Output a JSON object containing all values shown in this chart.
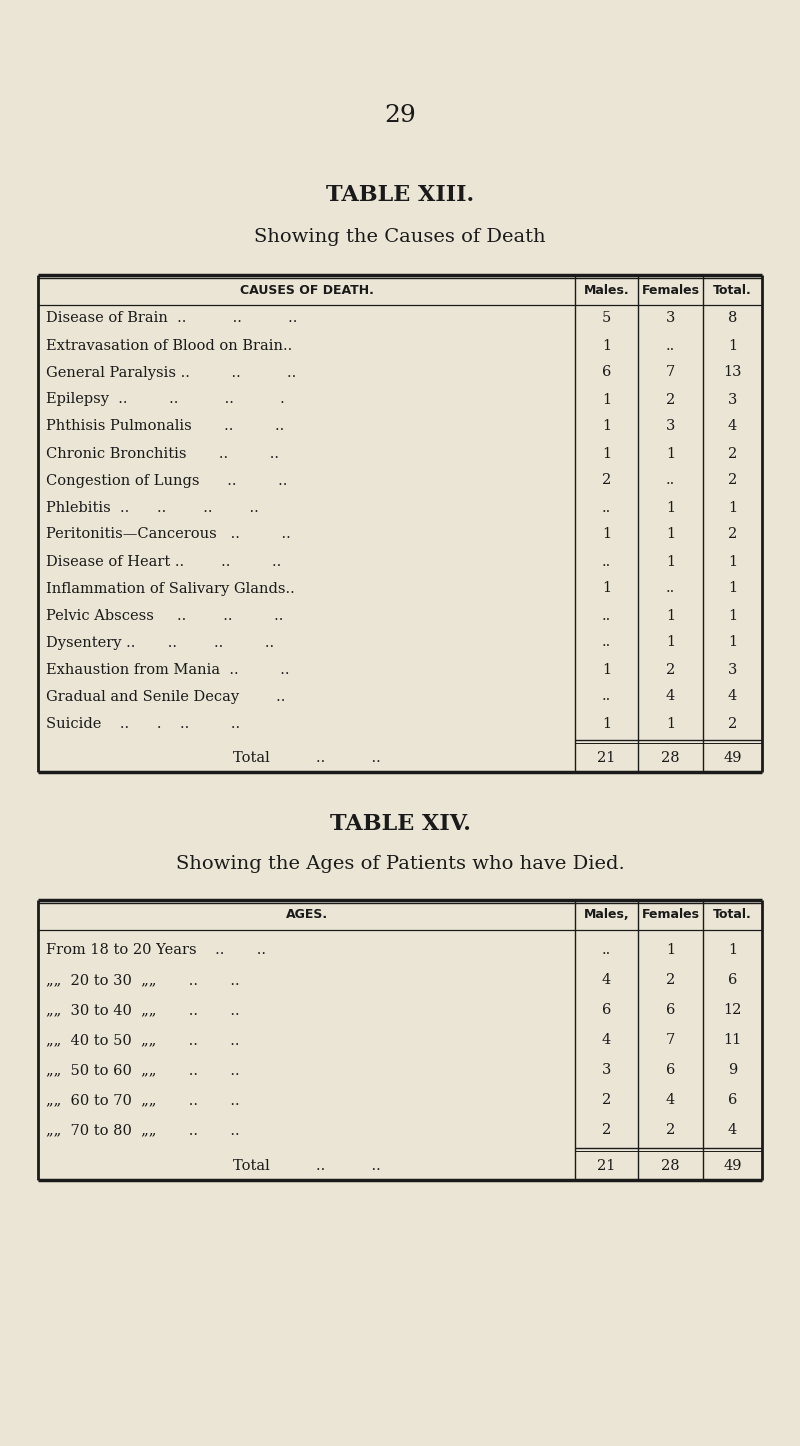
{
  "page_number": "29",
  "bg_color": "#EAE5D5",
  "text_color": "#1a1a1a",
  "table13": {
    "title": "TABLE XIII.",
    "subtitle": "Showing the Causes of Death",
    "col_headers": [
      "CAUSES OF DEATH.",
      "Males.",
      "Females",
      "Total."
    ],
    "rows": [
      [
        "Disease of Brain  ..          ..          ..",
        "5",
        "3",
        "8"
      ],
      [
        "Extravasation of Blood on Brain..",
        "1",
        "..",
        "1"
      ],
      [
        "General Paralysis ..         ..          ..",
        "6",
        "7",
        "13"
      ],
      [
        "Epilepsy  ..         ..          ..          .",
        "1",
        "2",
        "3"
      ],
      [
        "Phthisis Pulmonalis       ..         ..",
        "1",
        "3",
        "4"
      ],
      [
        "Chronic Bronchitis       ..         ..",
        "1",
        "1",
        "2"
      ],
      [
        "Congestion of Lungs      ..         ..",
        "2",
        "..",
        "2"
      ],
      [
        "Phlebitis  ..      ..        ..        ..",
        "..",
        "1",
        "1"
      ],
      [
        "Peritonitis—Cancerous   ..         ..",
        "1",
        "1",
        "2"
      ],
      [
        "Disease of Heart ..        ..         ..",
        "..",
        "1",
        "1"
      ],
      [
        "Inflammation of Salivary Glands..",
        "1",
        "..",
        "1"
      ],
      [
        "Pelvic Abscess     ..        ..         ..",
        "..",
        "1",
        "1"
      ],
      [
        "Dysentery ..       ..        ..         ..",
        "..",
        "1",
        "1"
      ],
      [
        "Exhaustion from Mania  ..         ..",
        "1",
        "2",
        "3"
      ],
      [
        "Gradual and Senile Decay        ..",
        "..",
        "4",
        "4"
      ],
      [
        "Suicide    ..      .    ..         ..",
        "1",
        "1",
        "2"
      ]
    ],
    "total_row": [
      "Total          ..          ..",
      "21",
      "28",
      "49"
    ]
  },
  "table14": {
    "title": "TABLE XIV.",
    "subtitle": "Showing the Ages of Patients who have Died.",
    "col_headers": [
      "AGES.",
      "Males,",
      "Females",
      "Total."
    ],
    "rows": [
      [
        "From 18 to 20 Years    ..       ..",
        "..",
        "1",
        "1"
      ],
      [
        "„„  20 to 30  „„       ..       ..",
        "4",
        "2",
        "6"
      ],
      [
        "„„  30 to 40  „„       ..       ..",
        "6",
        "6",
        "12"
      ],
      [
        "„„  40 to 50  „„       ..       ..",
        "4",
        "7",
        "11"
      ],
      [
        "„„  50 to 60  „„       ..       ..",
        "3",
        "6",
        "9"
      ],
      [
        "„„  60 to 70  „„       ..       ..",
        "2",
        "4",
        "6"
      ],
      [
        "„„  70 to 80  „„       ..       ..",
        "2",
        "2",
        "4"
      ]
    ],
    "total_row": [
      "Total          ..          ..",
      "21",
      "28",
      "49"
    ]
  }
}
